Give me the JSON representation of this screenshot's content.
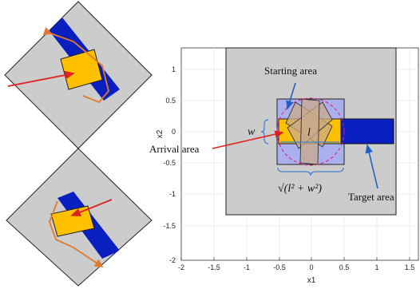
{
  "colors": {
    "gray_area": "#cccccc",
    "starting_area": "#aab0ee",
    "target_blue": "#0a1fbf",
    "arrival_yellow": "#ffc000",
    "box_tan": "#c9a98a",
    "arrow_red": "#e0201c",
    "arrow_blue": "#1f5fc7",
    "path_orange": "#e07a2a",
    "circle_magenta": "#e0207a",
    "measure_blue": "#3f7fd0"
  },
  "plot": {
    "xlabel": "x1",
    "ylabel": "x2",
    "xticks": [
      "-2",
      "-1.5",
      "-1",
      "-0.5",
      "0",
      "0.5",
      "1",
      "1.5"
    ],
    "yticks": [
      "1",
      "0.5",
      "0",
      "-0.5",
      "-1",
      "-1.5",
      "-2"
    ]
  },
  "annotations": {
    "starting_area": "Starting area",
    "arrival_area": "Arrival area",
    "target_area": "Target area",
    "w": "w",
    "l": "l",
    "diagonal": "√(l² + w²)"
  }
}
